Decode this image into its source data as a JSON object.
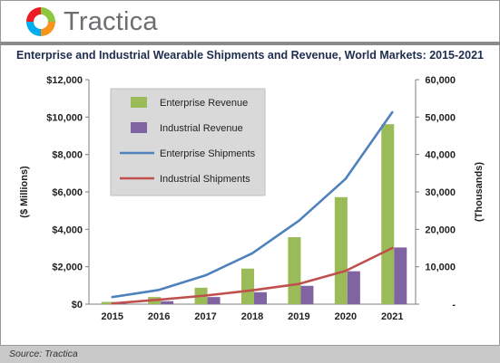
{
  "brand": {
    "name": "Tractica"
  },
  "source": "Source: Tractica",
  "chart_data": {
    "type": "bar",
    "title": "Enterprise and Industrial Wearable Shipments and Revenue, World Markets: 2015-2021",
    "categories": [
      "2015",
      "2016",
      "2017",
      "2018",
      "2019",
      "2020",
      "2021"
    ],
    "ylabel": "($ Millions)",
    "y2label": "(Thousands)",
    "ylim": [
      0,
      12000
    ],
    "y2lim": [
      0,
      60000
    ],
    "yticks": [
      "$0",
      "$2,000",
      "$4,000",
      "$6,000",
      "$8,000",
      "$10,000",
      "$12,000"
    ],
    "y2ticks": [
      "-",
      "10,000",
      "20,000",
      "30,000",
      "40,000",
      "50,000",
      "60,000"
    ],
    "grid": false,
    "legend": "top-left",
    "series": [
      {
        "name": "Enterprise Revenue",
        "kind": "bar",
        "axis": "left",
        "color": "#9bbb59",
        "values": [
          120,
          380,
          880,
          1900,
          3580,
          5720,
          9620
        ]
      },
      {
        "name": "Industrial Revenue",
        "kind": "bar",
        "axis": "left",
        "color": "#8064a2",
        "values": [
          40,
          160,
          380,
          640,
          980,
          1760,
          3030
        ]
      },
      {
        "name": "Enterprise Shipments",
        "kind": "line",
        "axis": "right",
        "color": "#4f81bd",
        "values": [
          1900,
          3800,
          7700,
          13600,
          22300,
          33500,
          51300
        ]
      },
      {
        "name": "Industrial Shipments",
        "kind": "line",
        "axis": "right",
        "color": "#c0504d",
        "values": [
          200,
          1200,
          2300,
          3700,
          5400,
          8900,
          15000
        ]
      }
    ]
  }
}
